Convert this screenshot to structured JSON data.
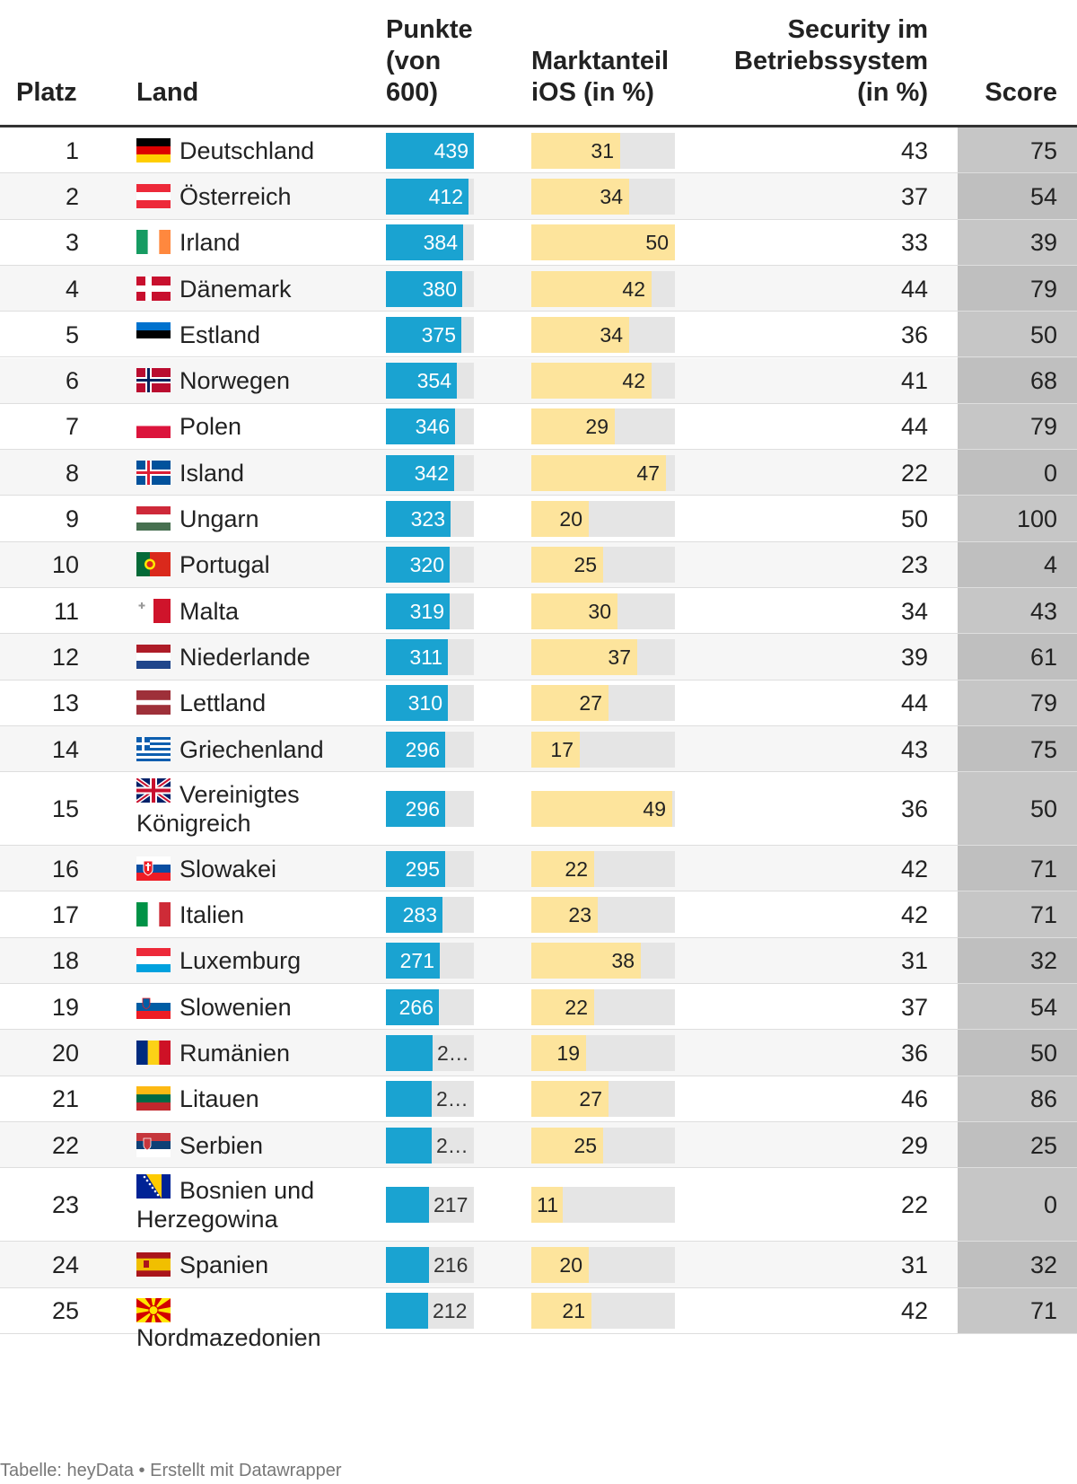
{
  "headers": {
    "platz": "Platz",
    "land": "Land",
    "punkte": [
      "Punkte",
      "(von",
      "600)"
    ],
    "ios": [
      "Marktanteil",
      "iOS (in %)"
    ],
    "security": [
      "Security im",
      "Betriebssystem",
      "(in %)"
    ],
    "score": "Score"
  },
  "chart_data": {
    "type": "table",
    "columns": [
      "Platz",
      "Land",
      "Punkte (von 600)",
      "Marktanteil iOS (in %)",
      "Security im Betriebssystem (in %)",
      "Score"
    ],
    "punkte_max": 600,
    "ios_max": 50,
    "rows": [
      {
        "rank": "1",
        "country": "Deutschland",
        "flag": "de",
        "punkte": 439,
        "punkte_label": "439",
        "ios": 31,
        "security": 43,
        "score": 75
      },
      {
        "rank": "2",
        "country": "Österreich",
        "flag": "at",
        "punkte": 412,
        "punkte_label": "412",
        "ios": 34,
        "security": 37,
        "score": 54
      },
      {
        "rank": "3",
        "country": "Irland",
        "flag": "ie",
        "punkte": 384,
        "punkte_label": "384",
        "ios": 50,
        "security": 33,
        "score": 39
      },
      {
        "rank": "4",
        "country": "Dänemark",
        "flag": "dk",
        "punkte": 380,
        "punkte_label": "380",
        "ios": 42,
        "security": 44,
        "score": 79
      },
      {
        "rank": "5",
        "country": "Estland",
        "flag": "ee",
        "punkte": 375,
        "punkte_label": "375",
        "ios": 34,
        "security": 36,
        "score": 50
      },
      {
        "rank": "6",
        "country": "Norwegen",
        "flag": "no",
        "punkte": 354,
        "punkte_label": "354",
        "ios": 42,
        "security": 41,
        "score": 68
      },
      {
        "rank": "7",
        "country": "Polen",
        "flag": "pl",
        "punkte": 346,
        "punkte_label": "346",
        "ios": 29,
        "security": 44,
        "score": 79
      },
      {
        "rank": "8",
        "country": "Island",
        "flag": "is",
        "punkte": 342,
        "punkte_label": "342",
        "ios": 47,
        "security": 22,
        "score": 0
      },
      {
        "rank": "9",
        "country": "Ungarn",
        "flag": "hu",
        "punkte": 323,
        "punkte_label": "323",
        "ios": 20,
        "security": 50,
        "score": 100
      },
      {
        "rank": "10",
        "country": "Portugal",
        "flag": "pt",
        "punkte": 320,
        "punkte_label": "320",
        "ios": 25,
        "security": 23,
        "score": 4
      },
      {
        "rank": "11",
        "country": "Malta",
        "flag": "mt",
        "punkte": 319,
        "punkte_label": "319",
        "ios": 30,
        "security": 34,
        "score": 43
      },
      {
        "rank": "12",
        "country": "Niederlande",
        "flag": "nl",
        "punkte": 311,
        "punkte_label": "311",
        "ios": 37,
        "security": 39,
        "score": 61
      },
      {
        "rank": "13",
        "country": "Lettland",
        "flag": "lv",
        "punkte": 310,
        "punkte_label": "310",
        "ios": 27,
        "security": 44,
        "score": 79
      },
      {
        "rank": "14",
        "country": "Griechenland",
        "flag": "gr",
        "punkte": 296,
        "punkte_label": "296",
        "ios": 17,
        "security": 43,
        "score": 75
      },
      {
        "rank": "15",
        "country": "Vereinigtes Königreich",
        "flag": "gb",
        "punkte": 296,
        "punkte_label": "296",
        "ios": 49,
        "security": 36,
        "score": 50
      },
      {
        "rank": "16",
        "country": "Slowakei",
        "flag": "sk",
        "punkte": 295,
        "punkte_label": "295",
        "ios": 22,
        "security": 42,
        "score": 71
      },
      {
        "rank": "17",
        "country": "Italien",
        "flag": "it",
        "punkte": 283,
        "punkte_label": "283",
        "ios": 23,
        "security": 42,
        "score": 71
      },
      {
        "rank": "18",
        "country": "Luxemburg",
        "flag": "lu",
        "punkte": 271,
        "punkte_label": "271",
        "ios": 38,
        "security": 31,
        "score": 32
      },
      {
        "rank": "19",
        "country": "Slowenien",
        "flag": "si",
        "punkte": 266,
        "punkte_label": "266",
        "ios": 22,
        "security": 37,
        "score": 54
      },
      {
        "rank": "20",
        "country": "Rumänien",
        "flag": "ro",
        "punkte": 232,
        "punkte_label": "2…",
        "ios": 19,
        "security": 36,
        "score": 50
      },
      {
        "rank": "21",
        "country": "Litauen",
        "flag": "lt",
        "punkte": 228,
        "punkte_label": "2…",
        "ios": 27,
        "security": 46,
        "score": 86
      },
      {
        "rank": "22",
        "country": "Serbien",
        "flag": "rs",
        "punkte": 228,
        "punkte_label": "2…",
        "ios": 25,
        "security": 29,
        "score": 25
      },
      {
        "rank": "23",
        "country": "Bosnien und Herzegowina",
        "flag": "ba",
        "punkte": 217,
        "punkte_label": "217",
        "ios": 11,
        "security": 22,
        "score": 0
      },
      {
        "rank": "24",
        "country": "Spanien",
        "flag": "es",
        "punkte": 216,
        "punkte_label": "216",
        "ios": 20,
        "security": 31,
        "score": 32
      },
      {
        "rank": "25",
        "country": "Nordmazedonien",
        "flag": "mk",
        "punkte": 212,
        "punkte_label": "212",
        "ios": 21,
        "security": 42,
        "score": 71
      }
    ]
  },
  "colors": {
    "punkte_bar": "#1aa3d1",
    "ios_bar": "#fde49c",
    "bar_track": "#e5e5e5",
    "score_column": "#c6c6c6"
  },
  "footer": "Tabelle: heyData • Erstellt mit Datawrapper"
}
